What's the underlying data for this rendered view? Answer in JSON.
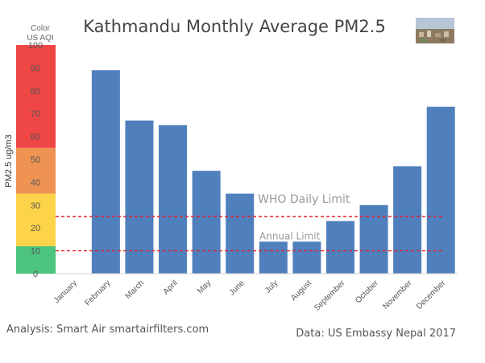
{
  "chart_data": {
    "type": "bar",
    "title": "Kathmandu Monthly Average PM2.5",
    "ylabel": "PM2.5 ug/m3",
    "ylim": [
      0,
      100
    ],
    "yticks": [
      0,
      10,
      20,
      30,
      40,
      50,
      60,
      70,
      80,
      90,
      100
    ],
    "categories": [
      "January",
      "February",
      "March",
      "April",
      "May",
      "June",
      "July",
      "August",
      "September",
      "October",
      "November",
      "December"
    ],
    "values": [
      null,
      89,
      67,
      65,
      45,
      35,
      14,
      14,
      23,
      30,
      47,
      73
    ],
    "bar_color": "#4f7fbd",
    "grid": false,
    "scale_header": [
      "Color",
      "US AQI"
    ],
    "aqi_bands": [
      {
        "from": 0,
        "to": 12,
        "color": "#4cc47f"
      },
      {
        "from": 12,
        "to": 35,
        "color": "#fdd349"
      },
      {
        "from": 35,
        "to": 55,
        "color": "#ef9352"
      },
      {
        "from": 55,
        "to": 100,
        "color": "#ef4646"
      }
    ],
    "reference_lines": [
      {
        "label": "WHO Daily Limit",
        "value": 25,
        "color": "#e4232b"
      },
      {
        "label": "Annual Limit",
        "value": 10,
        "color": "#e4232b"
      }
    ]
  },
  "footer": {
    "analysis": "Analysis: Smart Air smartairfilters.com",
    "source": "Data: US Embassy Nepal 2017"
  },
  "logo_icon": "kathmandu-city-photo"
}
